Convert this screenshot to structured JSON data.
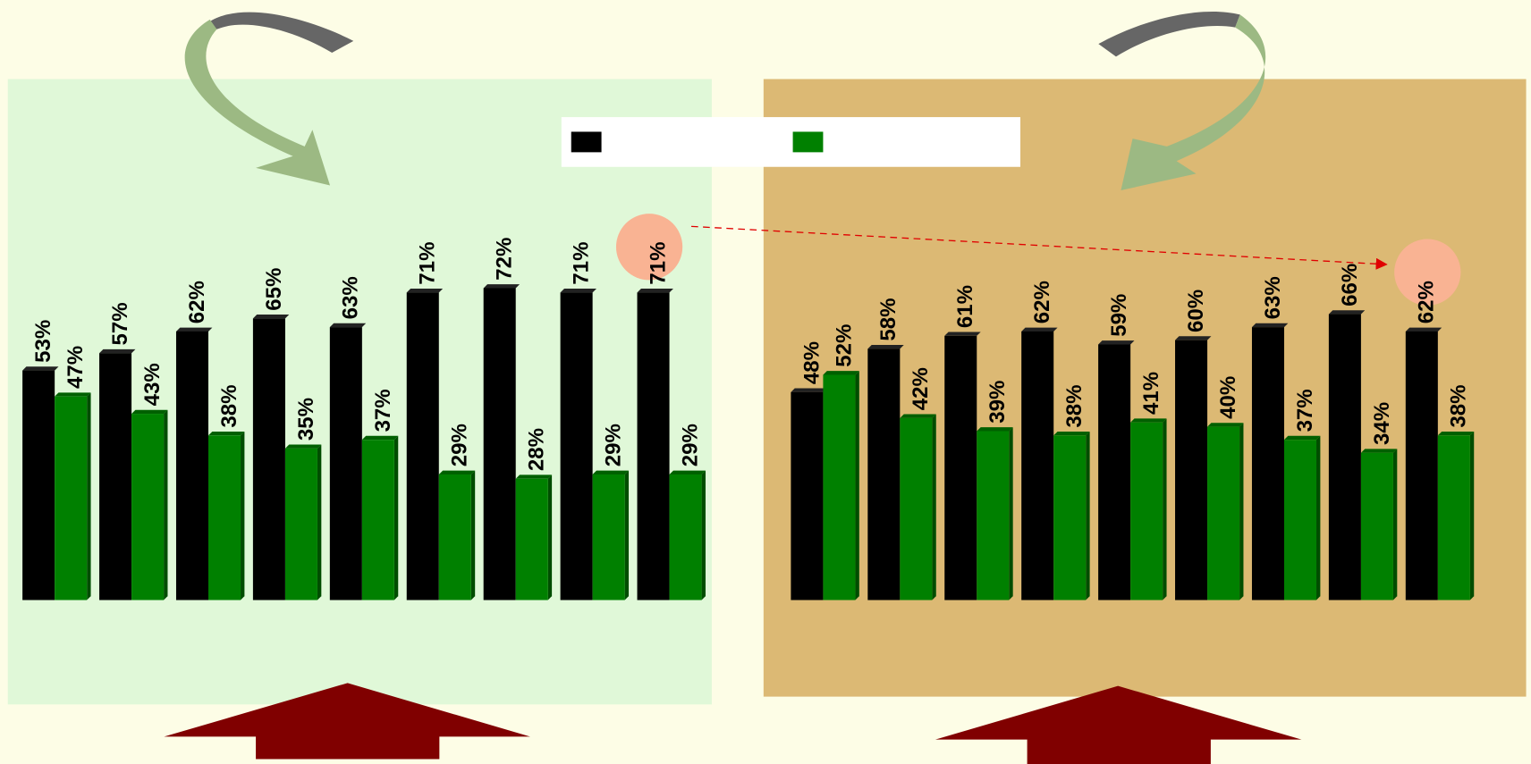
{
  "chart_data": [
    {
      "type": "bar",
      "series": [
        {
          "color": "#000000",
          "values": [
            53,
            57,
            62,
            65,
            63,
            71,
            72,
            71,
            71
          ],
          "value_labels": [
            "53%",
            "57%",
            "62%",
            "65%",
            "63%",
            "71%",
            "72%",
            "71%",
            "71%"
          ]
        },
        {
          "color": "#008000",
          "values": [
            47,
            43,
            38,
            35,
            37,
            29,
            28,
            29,
            29
          ],
          "value_labels": [
            "47%",
            "43%",
            "38%",
            "35%",
            "37%",
            "29%",
            "28%",
            "29%",
            "29%"
          ]
        }
      ]
    },
    {
      "type": "bar",
      "series": [
        {
          "color": "#000000",
          "values": [
            48,
            58,
            61,
            62,
            59,
            60,
            63,
            66,
            62
          ],
          "value_labels": [
            "48%",
            "58%",
            "61%",
            "62%",
            "59%",
            "60%",
            "63%",
            "66%",
            "62%"
          ]
        },
        {
          "color": "#008000",
          "values": [
            52,
            42,
            39,
            38,
            41,
            40,
            37,
            34,
            38
          ],
          "value_labels": [
            "52%",
            "42%",
            "39%",
            "38%",
            "41%",
            "40%",
            "37%",
            "34%",
            "38%"
          ]
        }
      ]
    }
  ]
}
